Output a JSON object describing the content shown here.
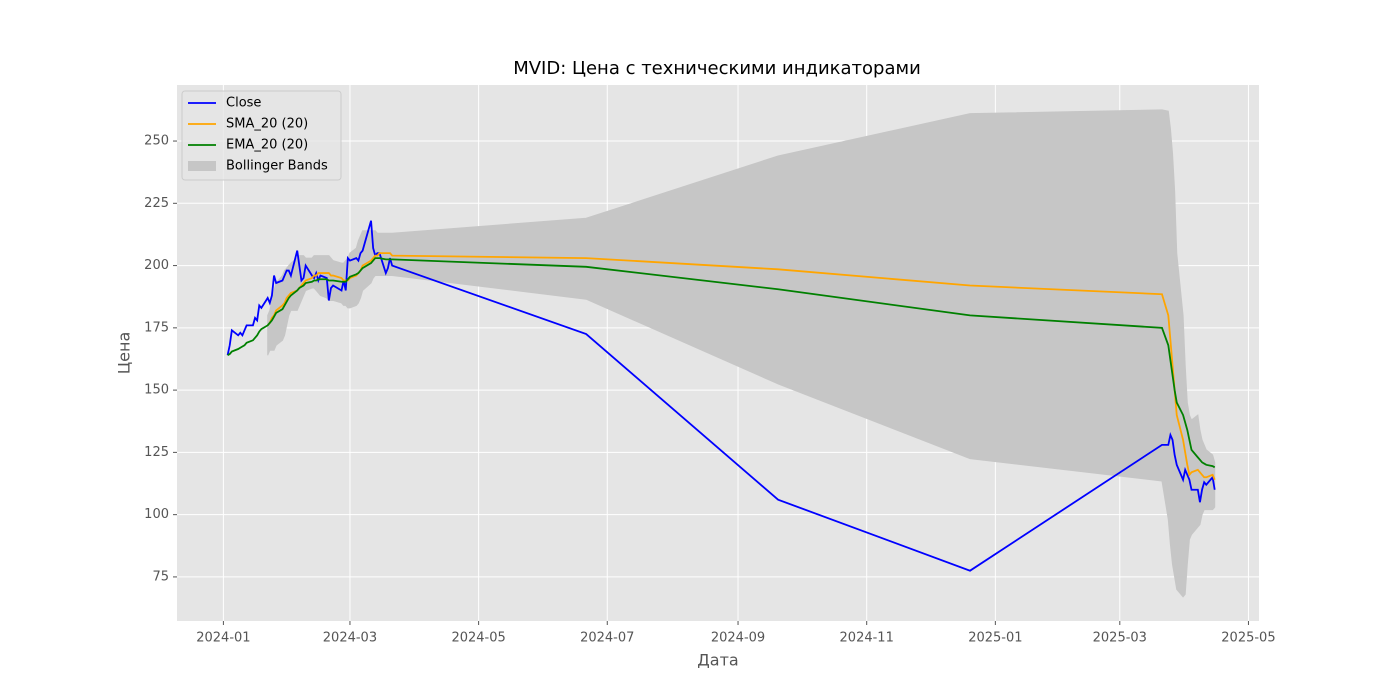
{
  "chart_data": {
    "type": "line",
    "title": "MVID: Цена с техническими индикаторами",
    "x_label": "Дата",
    "y_label": "Цена",
    "x": [
      "2024-01-03",
      "2024-01-04",
      "2024-01-05",
      "2024-01-08",
      "2024-01-09",
      "2024-01-10",
      "2024-01-11",
      "2024-01-12",
      "2024-01-15",
      "2024-01-16",
      "2024-01-17",
      "2024-01-18",
      "2024-01-19",
      "2024-01-22",
      "2024-01-23",
      "2024-01-24",
      "2024-01-25",
      "2024-01-26",
      "2024-01-29",
      "2024-01-30",
      "2024-01-31",
      "2024-02-01",
      "2024-02-02",
      "2024-02-05",
      "2024-02-06",
      "2024-02-07",
      "2024-02-08",
      "2024-02-09",
      "2024-02-12",
      "2024-02-13",
      "2024-02-14",
      "2024-02-15",
      "2024-02-16",
      "2024-02-19",
      "2024-02-20",
      "2024-02-21",
      "2024-02-22",
      "2024-02-26",
      "2024-02-27",
      "2024-02-28",
      "2024-02-29",
      "2024-03-01",
      "2024-03-04",
      "2024-03-05",
      "2024-03-06",
      "2024-03-07",
      "2024-03-11",
      "2024-03-12",
      "2024-03-13",
      "2024-03-14",
      "2024-03-15",
      "2024-03-18",
      "2024-03-19",
      "2024-03-20",
      "2024-03-21",
      "2024-06-21",
      "2024-09-20",
      "2024-12-20",
      "2025-03-21",
      "2025-03-24",
      "2025-03-25",
      "2025-03-26",
      "2025-03-27",
      "2025-03-28",
      "2025-03-31",
      "2025-04-01",
      "2025-04-02",
      "2025-04-03",
      "2025-04-04",
      "2025-04-07",
      "2025-04-08",
      "2025-04-09",
      "2025-04-10",
      "2025-04-11",
      "2025-04-14",
      "2025-04-15"
    ],
    "series": [
      {
        "name": "Close",
        "color": "#0000ff",
        "values": [
          164,
          168,
          174,
          172,
          173,
          172,
          174,
          176,
          176,
          179,
          178,
          184,
          183,
          187,
          185,
          188,
          196,
          193,
          194,
          196,
          198,
          198,
          196,
          206,
          200,
          194,
          195,
          200,
          196,
          195,
          197,
          194,
          196,
          195,
          186,
          191,
          192,
          190,
          194,
          190,
          203,
          202,
          203,
          202,
          205,
          206,
          218,
          207,
          204,
          205,
          205,
          197,
          199,
          203,
          200,
          172.5,
          106,
          77.5,
          128,
          128,
          132,
          130,
          124,
          120,
          114,
          118,
          116,
          114,
          110,
          110,
          105,
          110,
          113,
          112,
          115,
          110
        ]
      },
      {
        "name": "SMA_20 (20)",
        "color": "#ffa500",
        "values": [
          null,
          null,
          null,
          null,
          null,
          null,
          null,
          null,
          null,
          null,
          null,
          null,
          null,
          176,
          177,
          179,
          180,
          182,
          184,
          185,
          187,
          188,
          189,
          190,
          191,
          192,
          193,
          194,
          195,
          196,
          196,
          197,
          197,
          197,
          197,
          196,
          196,
          195,
          194,
          194,
          194,
          195,
          196,
          197,
          198,
          200,
          202,
          203,
          204,
          204,
          205,
          205,
          205,
          205,
          204,
          203,
          198.5,
          192,
          188.5,
          180,
          170,
          160,
          150,
          140,
          130,
          125,
          120,
          116,
          117,
          118,
          117,
          116,
          115,
          115,
          116,
          114
        ]
      },
      {
        "name": "EMA_20 (20)",
        "color": "#008000",
        "values": [
          164,
          164.5,
          165.5,
          166.5,
          167,
          167.5,
          168,
          169,
          170,
          171,
          172,
          173.5,
          174.5,
          176,
          177,
          178,
          179.5,
          181,
          182.5,
          184,
          185.5,
          187,
          188,
          190,
          191,
          191.5,
          192,
          193,
          193.5,
          194,
          194,
          194.5,
          194.5,
          194.5,
          194,
          194,
          194,
          193.5,
          193.5,
          193.5,
          194.5,
          195.5,
          196.5,
          197,
          198,
          199,
          201,
          202,
          203,
          203,
          203,
          202.5,
          202.5,
          202.5,
          202.5,
          199.5,
          190.5,
          180,
          175,
          168,
          162,
          156,
          150,
          145,
          140,
          137,
          134,
          130,
          126,
          123,
          122,
          121,
          120.5,
          120,
          119.5,
          119
        ]
      }
    ],
    "band": {
      "name": "Bollinger Bands",
      "color": "#c6c6c6",
      "upper": [
        null,
        null,
        null,
        null,
        null,
        null,
        null,
        null,
        null,
        null,
        null,
        null,
        null,
        180,
        182,
        186,
        190,
        193,
        196,
        198,
        199,
        200,
        201,
        203,
        204,
        204,
        204,
        203,
        203,
        204,
        204,
        204,
        204,
        204,
        204,
        203,
        202,
        201,
        201,
        202,
        203,
        205,
        207,
        210,
        212,
        214,
        214,
        214,
        214,
        213,
        213,
        213,
        213,
        213,
        213,
        219,
        244,
        261,
        262.5,
        262,
        255,
        245,
        230,
        205,
        180,
        160,
        145,
        140,
        138,
        140,
        134,
        130,
        128,
        126,
        124,
        121
      ],
      "lower": [
        null,
        null,
        null,
        null,
        null,
        null,
        null,
        null,
        null,
        null,
        null,
        null,
        null,
        164,
        166,
        166,
        166,
        168,
        170,
        172,
        176,
        180,
        182,
        182,
        184,
        186,
        188,
        190,
        191,
        191,
        190,
        189,
        188,
        187,
        186,
        186,
        186,
        185,
        184,
        184,
        183,
        183,
        184,
        185,
        187,
        190,
        193,
        195,
        196,
        196,
        196,
        196,
        196,
        196,
        196,
        186.5,
        152.5,
        122.5,
        113.5,
        98,
        88,
        80,
        75,
        70,
        67,
        68,
        80,
        90,
        92,
        95,
        96,
        100,
        102,
        102,
        102,
        103
      ]
    },
    "xlim": [
      "2023-12-10",
      "2025-05-06"
    ],
    "xticks": [
      {
        "value": "2024-01-01",
        "label": "2024-01"
      },
      {
        "value": "2024-03-01",
        "label": "2024-03"
      },
      {
        "value": "2024-05-01",
        "label": "2024-05"
      },
      {
        "value": "2024-07-01",
        "label": "2024-07"
      },
      {
        "value": "2024-09-01",
        "label": "2024-09"
      },
      {
        "value": "2024-11-01",
        "label": "2024-11"
      },
      {
        "value": "2025-01-01",
        "label": "2025-01"
      },
      {
        "value": "2025-03-01",
        "label": "2025-03"
      },
      {
        "value": "2025-05-01",
        "label": "2025-05"
      }
    ],
    "ylim": [
      57.3,
      272.5
    ],
    "yticks": [
      75,
      100,
      125,
      150,
      175,
      200,
      225,
      250
    ],
    "grid": true,
    "legend": "upper left"
  }
}
